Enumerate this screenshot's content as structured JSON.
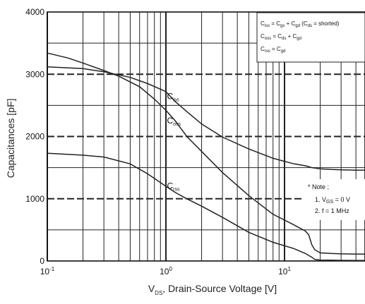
{
  "chart_data": {
    "type": "line",
    "xscale": "log",
    "xlim": [
      0.1,
      50
    ],
    "ylim": [
      0,
      4000
    ],
    "grid": true,
    "xlabel": "V",
    "xlabel_sub": "DS",
    "xlabel_rest": ", Drain-Source Voltage [V]",
    "ylabel": "Capacitances [pF]",
    "x_ticks": [
      {
        "value": 0.1,
        "base": "10",
        "exp": "-1"
      },
      {
        "value": 1,
        "base": "10",
        "exp": "0"
      },
      {
        "value": 10,
        "base": "10",
        "exp": "1"
      }
    ],
    "y_ticks": [
      {
        "value": 0,
        "label": "0"
      },
      {
        "value": 1000,
        "label": "1000"
      },
      {
        "value": 2000,
        "label": "2000"
      },
      {
        "value": 3000,
        "label": "3000"
      },
      {
        "value": 4000,
        "label": "4000"
      }
    ],
    "series": [
      {
        "name": "C",
        "sub": "iss",
        "label_at": [
          1.02,
          2600
        ],
        "x": [
          0.1,
          0.2,
          0.3,
          0.5,
          0.7,
          0.9,
          1.0,
          1.2,
          1.5,
          2,
          3,
          5,
          8,
          12,
          15,
          17,
          20,
          25,
          30,
          40,
          50
        ],
        "y": [
          3120,
          3090,
          3040,
          2950,
          2850,
          2760,
          2720,
          2560,
          2400,
          2200,
          1990,
          1800,
          1650,
          1560,
          1530,
          1500,
          1480,
          1470,
          1465,
          1460,
          1460
        ]
      },
      {
        "name": "C",
        "sub": "oss",
        "label_at": [
          1.02,
          2210
        ],
        "x": [
          0.1,
          0.15,
          0.2,
          0.3,
          0.4,
          0.6,
          0.8,
          1.0,
          1.2,
          1.5,
          2,
          3,
          5,
          8,
          12,
          15,
          16,
          17,
          18,
          20,
          25,
          30,
          40,
          50
        ],
        "y": [
          3340,
          3260,
          3180,
          3060,
          2970,
          2800,
          2600,
          2420,
          2250,
          2000,
          1760,
          1420,
          1050,
          750,
          580,
          480,
          420,
          260,
          180,
          130,
          120,
          115,
          110,
          110
        ]
      },
      {
        "name": "C",
        "sub": "rss",
        "label_at": [
          1.02,
          1160
        ],
        "x": [
          0.1,
          0.2,
          0.3,
          0.5,
          0.7,
          1.0,
          1.2,
          1.5,
          2,
          3,
          5,
          8,
          12,
          15,
          17,
          18,
          20,
          25,
          30,
          40,
          50
        ],
        "y": [
          1730,
          1700,
          1670,
          1560,
          1400,
          1200,
          1100,
          1000,
          880,
          700,
          460,
          300,
          200,
          120,
          60,
          25,
          15,
          12,
          10,
          8,
          8
        ]
      }
    ],
    "legend_box": {
      "lines": [
        {
          "parts": [
            [
              "C",
              ""
            ],
            [
              "iss",
              "sub"
            ],
            [
              " = C",
              ""
            ],
            [
              "gs",
              "sub"
            ],
            [
              " + C",
              ""
            ],
            [
              "gd",
              "sub"
            ],
            [
              " (C",
              ""
            ],
            [
              "ds",
              "sub"
            ],
            [
              " = shorted)",
              ""
            ]
          ]
        },
        {
          "parts": [
            [
              "C",
              ""
            ],
            [
              "oss",
              "sub"
            ],
            [
              " = C",
              ""
            ],
            [
              "ds",
              "sub"
            ],
            [
              " + C",
              ""
            ],
            [
              "gd",
              "sub"
            ]
          ]
        },
        {
          "parts": [
            [
              "C",
              ""
            ],
            [
              "rss",
              "sub"
            ],
            [
              " = C",
              ""
            ],
            [
              "gd",
              "sub"
            ]
          ]
        }
      ]
    },
    "note": {
      "title": "* Note ;",
      "lines": [
        {
          "parts": [
            [
              "1. V",
              ""
            ],
            [
              "GS",
              "sub"
            ],
            [
              " = 0 V",
              ""
            ]
          ]
        },
        {
          "parts": [
            [
              "2. f = 1 MHz",
              ""
            ]
          ]
        }
      ]
    }
  }
}
